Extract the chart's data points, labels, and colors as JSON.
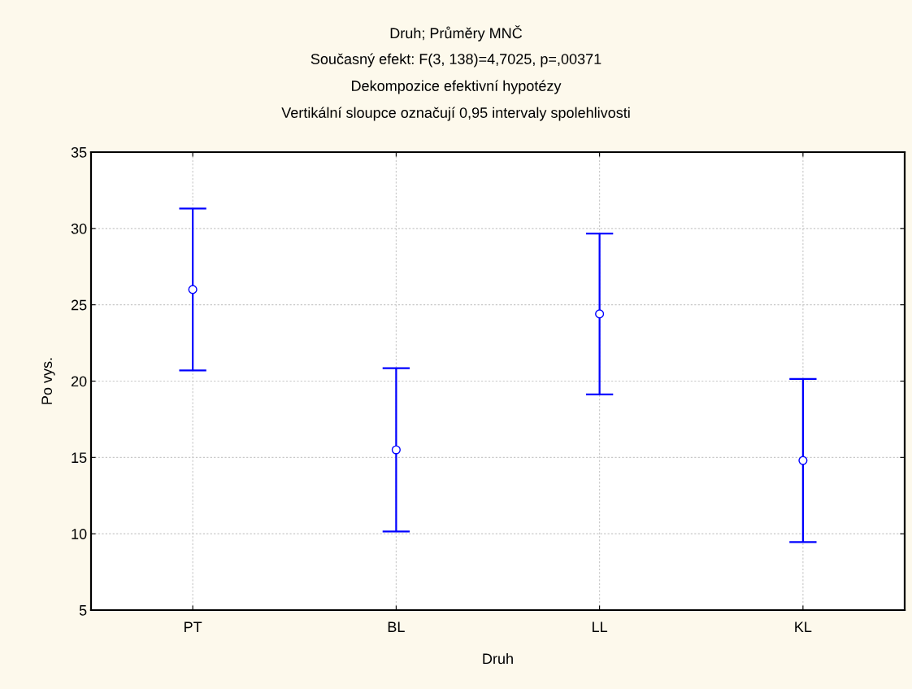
{
  "chart_data": {
    "type": "scatter",
    "title": "Druh; Průměry MNČ",
    "subtitle": "Současný efekt: F(3, 138)=4,7025, p=,00371",
    "annotations": [
      "Dekompozice efektivní hypotézy",
      "Vertikální sloupce označují 0,95 intervaly spolehlivosti"
    ],
    "xlabel": "Druh",
    "ylabel": "Po vys.",
    "categories": [
      "PT",
      "BL",
      "LL",
      "KL"
    ],
    "series": [
      {
        "color": "#0000ff",
        "values": [
          26.0,
          15.5,
          24.4,
          14.8
        ],
        "errors": [
          5.3,
          5.35,
          5.27,
          5.34
        ]
      }
    ],
    "ylim": [
      5,
      35
    ],
    "yticks": [
      5,
      10,
      15,
      20,
      25,
      30,
      35
    ],
    "grid": true,
    "marker": "circle",
    "legend": false
  }
}
